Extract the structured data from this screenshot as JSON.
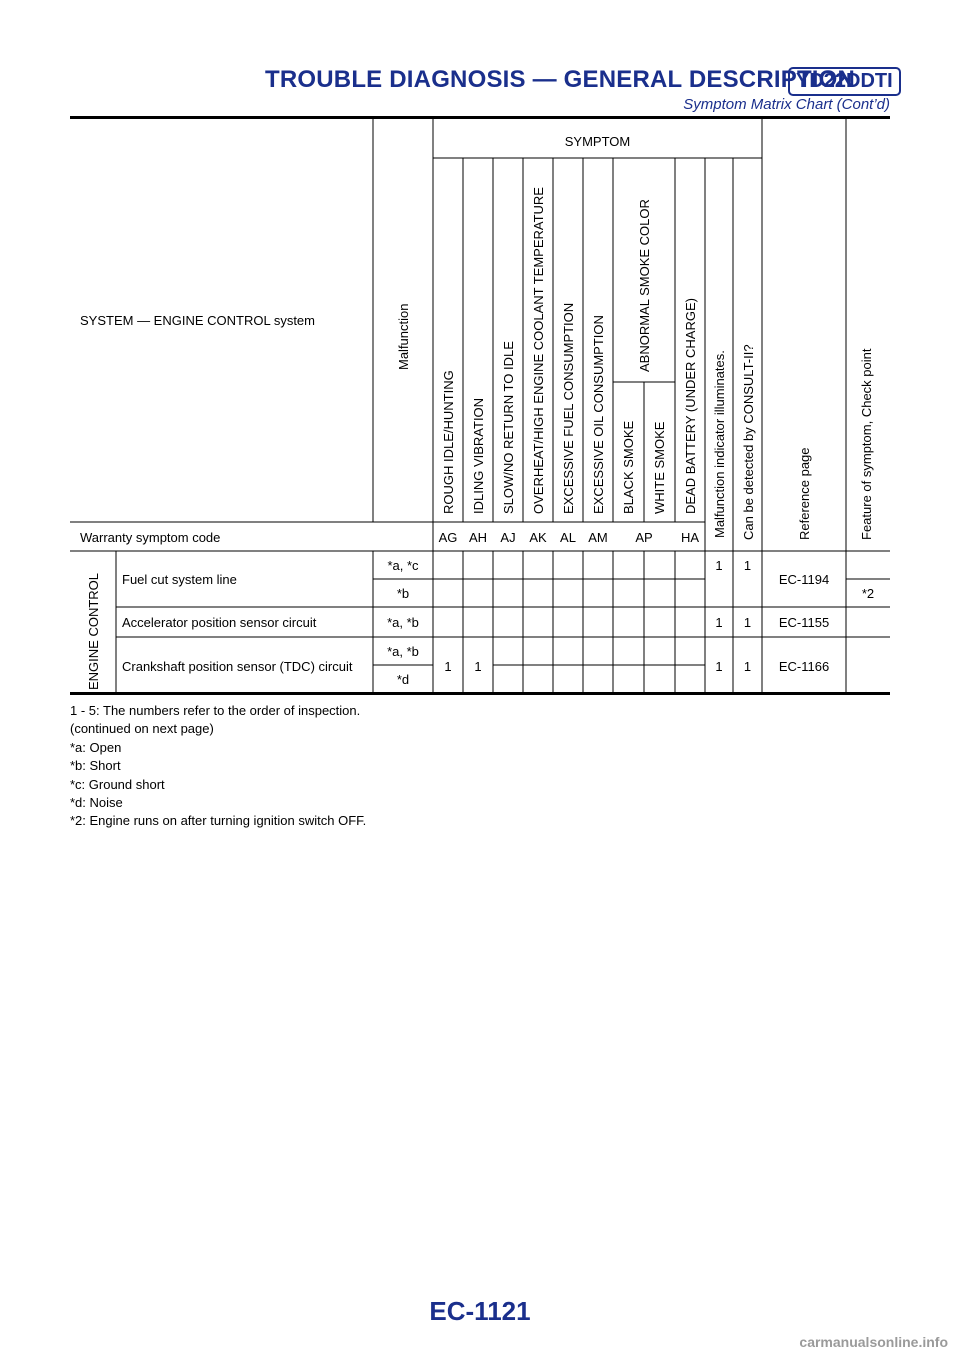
{
  "header": {
    "title": "TROUBLE DIAGNOSIS — GENERAL DESCRIPTION",
    "badge": "YD22DDTI",
    "subtitle": "Symptom Matrix Chart (Cont’d)"
  },
  "table": {
    "system_label": "SYSTEM — ENGINE CONTROL system",
    "malfunction_label": "Malfunction",
    "symptom_label": "SYMPTOM",
    "symptom_columns": [
      "ROUGH IDLE/HUNTING",
      "IDLING VIBRATION",
      "SLOW/NO RETURN TO IDLE",
      "OVERHEAT/HIGH ENGINE COOLANT TEMPERATURE",
      "EXCESSIVE FUEL CONSUMPTION",
      "EXCESSIVE OIL CONSUMPTION"
    ],
    "abnormal_smoke_label": "ABNORMAL SMOKE COLOR",
    "smoke_columns": [
      "BLACK SMOKE",
      "WHITE SMOKE"
    ],
    "dead_battery_label": "DEAD BATTERY (UNDER CHARGE)",
    "mil_label": "Malfunction indicator illuminates.",
    "consult_label": "Can be detected by CONSULT-II?",
    "reference_label": "Reference page",
    "feature_label": "Feature of symptom, Check point",
    "warranty_label": "Warranty symptom code",
    "warranty_codes": [
      "AG",
      "AH",
      "AJ",
      "AK",
      "AL",
      "AM",
      "AP",
      "HA"
    ],
    "group_label": "ENGINE CONTROL",
    "rows": {
      "fuel_cut": {
        "item": "Fuel cut system line",
        "mal1": "*a, *c",
        "mal2": "*b",
        "mil": "1",
        "consult": "1",
        "ref": "EC-1194",
        "feature": "*2"
      },
      "accel": {
        "item": "Accelerator position sensor circuit",
        "mal": "*a, *b",
        "mil": "1",
        "consult": "1",
        "ref": "EC-1155"
      },
      "crank": {
        "item": "Crankshaft position sensor (TDC) circuit",
        "mal1": "*a, *b",
        "mal2": "*d",
        "rough_idle": "1",
        "idling_vib": "1",
        "mil": "1",
        "consult": "1",
        "ref": "EC-1166"
      }
    }
  },
  "notes": [
    "1 - 5: The numbers refer to the order of inspection.",
    "(continued on next page)",
    "*a: Open",
    "*b: Short",
    "*c: Ground short",
    "*d: Noise",
    "*2: Engine runs on after turning ignition switch OFF."
  ],
  "page_number": "EC-1121",
  "watermark": "carmanualsonline.info"
}
